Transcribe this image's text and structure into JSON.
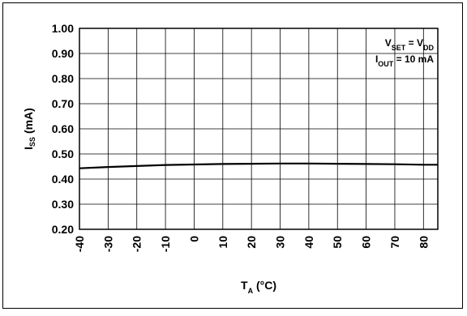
{
  "chart_data": {
    "type": "line",
    "xlabel": {
      "main": "T",
      "sub": "A",
      "unit": " (°C)"
    },
    "ylabel": {
      "main": "I",
      "sub": "SS",
      "unit": " (mA)"
    },
    "xlim": [
      -40,
      85
    ],
    "ylim": [
      0.2,
      1.0
    ],
    "x_ticks": [
      -40,
      -30,
      -20,
      -10,
      0,
      10,
      20,
      30,
      40,
      50,
      60,
      70,
      80
    ],
    "x_tick_labels": [
      "-40",
      "-30",
      "-20",
      "-10",
      "0",
      "10",
      "20",
      "30",
      "40",
      "50",
      "60",
      "70",
      "80"
    ],
    "y_ticks": [
      0.2,
      0.3,
      0.4,
      0.5,
      0.6,
      0.7,
      0.8,
      0.9,
      1.0
    ],
    "y_tick_labels": [
      "0.20",
      "0.30",
      "0.40",
      "0.50",
      "0.60",
      "0.70",
      "0.80",
      "0.90",
      "1.00"
    ],
    "grid": true,
    "annotations": [
      {
        "parts": [
          {
            "t": "V",
            "sub": false
          },
          {
            "t": "SET",
            "sub": true
          },
          {
            "t": " = V",
            "sub": false
          },
          {
            "t": "DD",
            "sub": true
          }
        ]
      },
      {
        "parts": [
          {
            "t": "I",
            "sub": false
          },
          {
            "t": "OUT",
            "sub": true
          },
          {
            "t": " = 10 mA",
            "sub": false
          }
        ]
      }
    ],
    "series": [
      {
        "color": "#000000",
        "x": [
          -40,
          -30,
          -20,
          -10,
          0,
          10,
          20,
          30,
          40,
          50,
          60,
          70,
          80,
          85
        ],
        "y": [
          0.443,
          0.448,
          0.452,
          0.456,
          0.458,
          0.46,
          0.461,
          0.462,
          0.462,
          0.461,
          0.46,
          0.459,
          0.457,
          0.457
        ]
      }
    ]
  }
}
